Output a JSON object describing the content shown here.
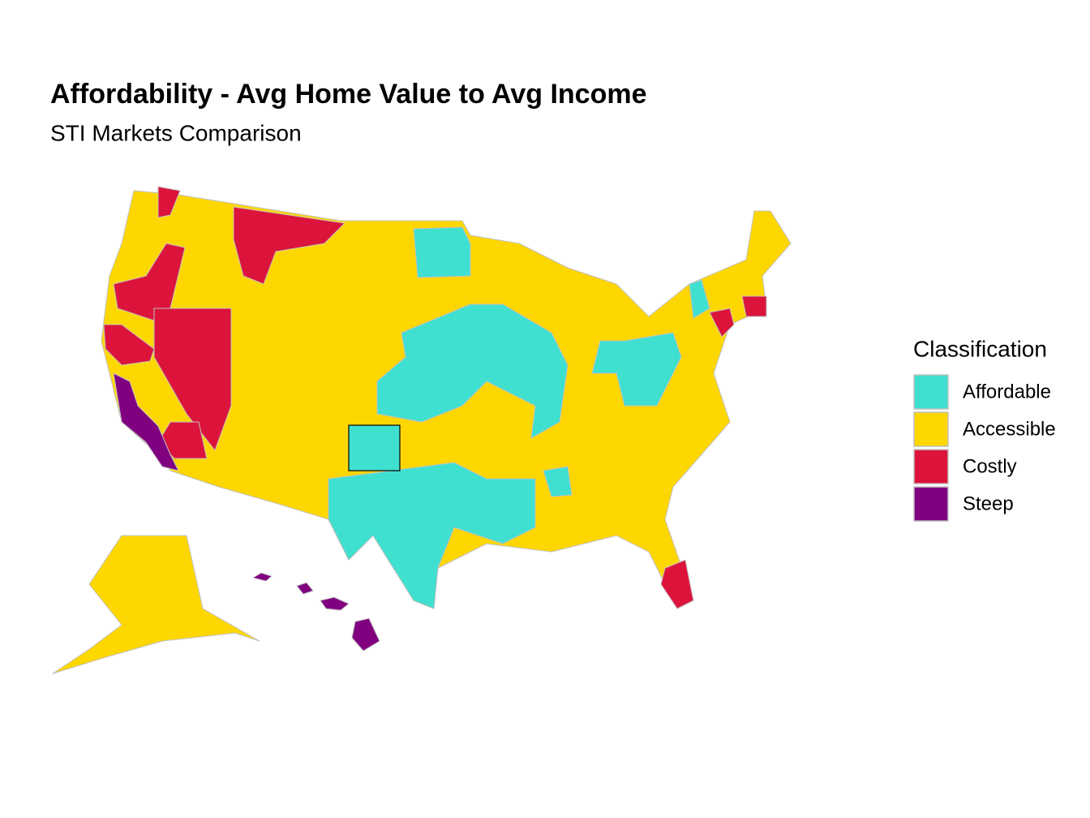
{
  "title": "Affordability - Avg Home Value to Avg Income",
  "subtitle": "STI Markets Comparison",
  "legend": {
    "title": "Classification",
    "items": [
      {
        "name": "Affordable",
        "color": "#40e0d0"
      },
      {
        "name": "Accessible",
        "color": "#ffd700"
      },
      {
        "name": "Costly",
        "color": "#dc143c"
      },
      {
        "name": "Steep",
        "color": "#800080"
      }
    ]
  }
}
